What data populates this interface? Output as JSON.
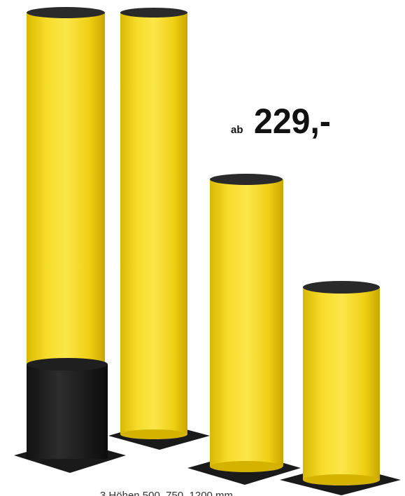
{
  "price": {
    "prefix": "ab",
    "amount": "229,-"
  },
  "caption": "3 Höhen 500, 750, 1200 mm"
}
